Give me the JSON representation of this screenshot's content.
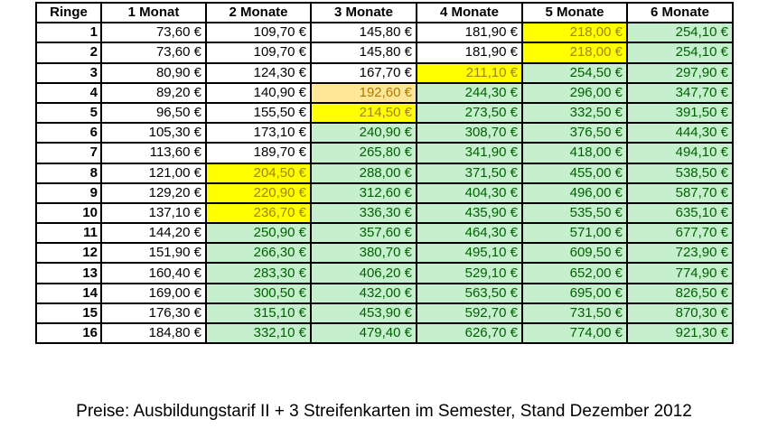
{
  "table": {
    "headers": [
      "Ringe",
      "1 Monat",
      "2 Monate",
      "3 Monate",
      "4 Monate",
      "5 Monate",
      "6 Monate"
    ],
    "rows": [
      {
        "ring": "1",
        "prices": [
          "73,60 €",
          "109,70 €",
          "145,80 €",
          "181,90 €",
          "218,00 €",
          "254,10 €"
        ],
        "styles": [
          "plain",
          "plain",
          "plain",
          "plain",
          "yellow",
          "green"
        ]
      },
      {
        "ring": "2",
        "prices": [
          "73,60 €",
          "109,70 €",
          "145,80 €",
          "181,90 €",
          "218,00 €",
          "254,10 €"
        ],
        "styles": [
          "plain",
          "plain",
          "plain",
          "plain",
          "yellow",
          "green"
        ]
      },
      {
        "ring": "3",
        "prices": [
          "80,90 €",
          "124,30 €",
          "167,70 €",
          "211,10 €",
          "254,50 €",
          "297,90 €"
        ],
        "styles": [
          "plain",
          "plain",
          "plain",
          "yellow",
          "green",
          "green"
        ]
      },
      {
        "ring": "4",
        "prices": [
          "89,20 €",
          "140,90 €",
          "192,60 €",
          "244,30 €",
          "296,00 €",
          "347,70 €"
        ],
        "styles": [
          "plain",
          "plain",
          "orange",
          "green",
          "green",
          "green"
        ]
      },
      {
        "ring": "5",
        "prices": [
          "96,50 €",
          "155,50 €",
          "214,50 €",
          "273,50 €",
          "332,50 €",
          "391,50 €"
        ],
        "styles": [
          "plain",
          "plain",
          "yellow",
          "green",
          "green",
          "green"
        ]
      },
      {
        "ring": "6",
        "prices": [
          "105,30 €",
          "173,10 €",
          "240,90 €",
          "308,70 €",
          "376,50 €",
          "444,30 €"
        ],
        "styles": [
          "plain",
          "plain",
          "green",
          "green",
          "green",
          "green"
        ]
      },
      {
        "ring": "7",
        "prices": [
          "113,60 €",
          "189,70 €",
          "265,80 €",
          "341,90 €",
          "418,00 €",
          "494,10 €"
        ],
        "styles": [
          "plain",
          "plain",
          "green",
          "green",
          "green",
          "green"
        ]
      },
      {
        "ring": "8",
        "prices": [
          "121,00 €",
          "204,50 €",
          "288,00 €",
          "371,50 €",
          "455,00 €",
          "538,50 €"
        ],
        "styles": [
          "plain",
          "yellow",
          "green",
          "green",
          "green",
          "green"
        ]
      },
      {
        "ring": "9",
        "prices": [
          "129,20 €",
          "220,90 €",
          "312,60 €",
          "404,30 €",
          "496,00 €",
          "587,70 €"
        ],
        "styles": [
          "plain",
          "yellow",
          "green",
          "green",
          "green",
          "green"
        ]
      },
      {
        "ring": "10",
        "prices": [
          "137,10 €",
          "236,70 €",
          "336,30 €",
          "435,90 €",
          "535,50 €",
          "635,10 €"
        ],
        "styles": [
          "plain",
          "yellow",
          "green",
          "green",
          "green",
          "green"
        ]
      },
      {
        "ring": "11",
        "prices": [
          "144,20 €",
          "250,90 €",
          "357,60 €",
          "464,30 €",
          "571,00 €",
          "677,70 €"
        ],
        "styles": [
          "plain",
          "green",
          "green",
          "green",
          "green",
          "green"
        ]
      },
      {
        "ring": "12",
        "prices": [
          "151,90 €",
          "266,30 €",
          "380,70 €",
          "495,10 €",
          "609,50 €",
          "723,90 €"
        ],
        "styles": [
          "plain",
          "green",
          "green",
          "green",
          "green",
          "green"
        ]
      },
      {
        "ring": "13",
        "prices": [
          "160,40 €",
          "283,30 €",
          "406,20 €",
          "529,10 €",
          "652,00 €",
          "774,90 €"
        ],
        "styles": [
          "plain",
          "green",
          "green",
          "green",
          "green",
          "green"
        ]
      },
      {
        "ring": "14",
        "prices": [
          "169,00 €",
          "300,50 €",
          "432,00 €",
          "563,50 €",
          "695,00 €",
          "826,50 €"
        ],
        "styles": [
          "plain",
          "green",
          "green",
          "green",
          "green",
          "green"
        ]
      },
      {
        "ring": "15",
        "prices": [
          "176,30 €",
          "315,10 €",
          "453,90 €",
          "592,70 €",
          "731,50 €",
          "870,30 €"
        ],
        "styles": [
          "plain",
          "green",
          "green",
          "green",
          "green",
          "green"
        ]
      },
      {
        "ring": "16",
        "prices": [
          "184,80 €",
          "332,10 €",
          "479,40 €",
          "626,70 €",
          "774,00 €",
          "921,30 €"
        ],
        "styles": [
          "plain",
          "green",
          "green",
          "green",
          "green",
          "green"
        ]
      }
    ]
  },
  "colors": {
    "yellow_fill": "#ffff00",
    "orange_fill": "#ffe699",
    "green_fill": "#c6efce",
    "green_text": "#006100"
  },
  "caption": "Preise: Ausbildungstarif II + 3 Streifenkarten im Semester, Stand Dezember 2012"
}
